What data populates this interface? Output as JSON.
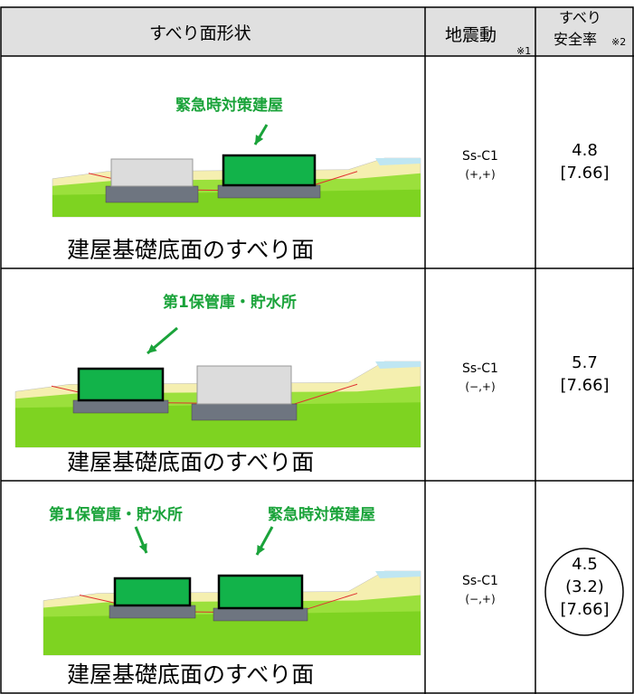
{
  "header": {
    "shape": "すべり面形状",
    "ground_motion": "地震動",
    "ground_motion_note": "※1",
    "safety_lines": [
      "すべり",
      "安全率"
    ],
    "safety_note": "※2"
  },
  "rows": [
    {
      "labels": [
        "緊急時対策建屋"
      ],
      "caption": "建屋基礎底面のすべり面",
      "ground_motion": [
        "Ss-C1",
        "(+,+)"
      ],
      "safety": [
        "4.8",
        "[7.66]"
      ]
    },
    {
      "labels": [
        "第1保管庫・貯水所"
      ],
      "caption": "建屋基礎底面のすべり面",
      "ground_motion": [
        "Ss-C1",
        "(−,+)"
      ],
      "safety": [
        "5.7",
        "[7.66]"
      ]
    },
    {
      "labels": [
        "第1保管庫・貯水所",
        "緊急時対策建屋"
      ],
      "caption": "建屋基礎底面のすべり面",
      "ground_motion": [
        "Ss-C1",
        "(−,+)"
      ],
      "safety": [
        "4.5",
        "(3.2)",
        "[7.66]"
      ]
    }
  ]
}
